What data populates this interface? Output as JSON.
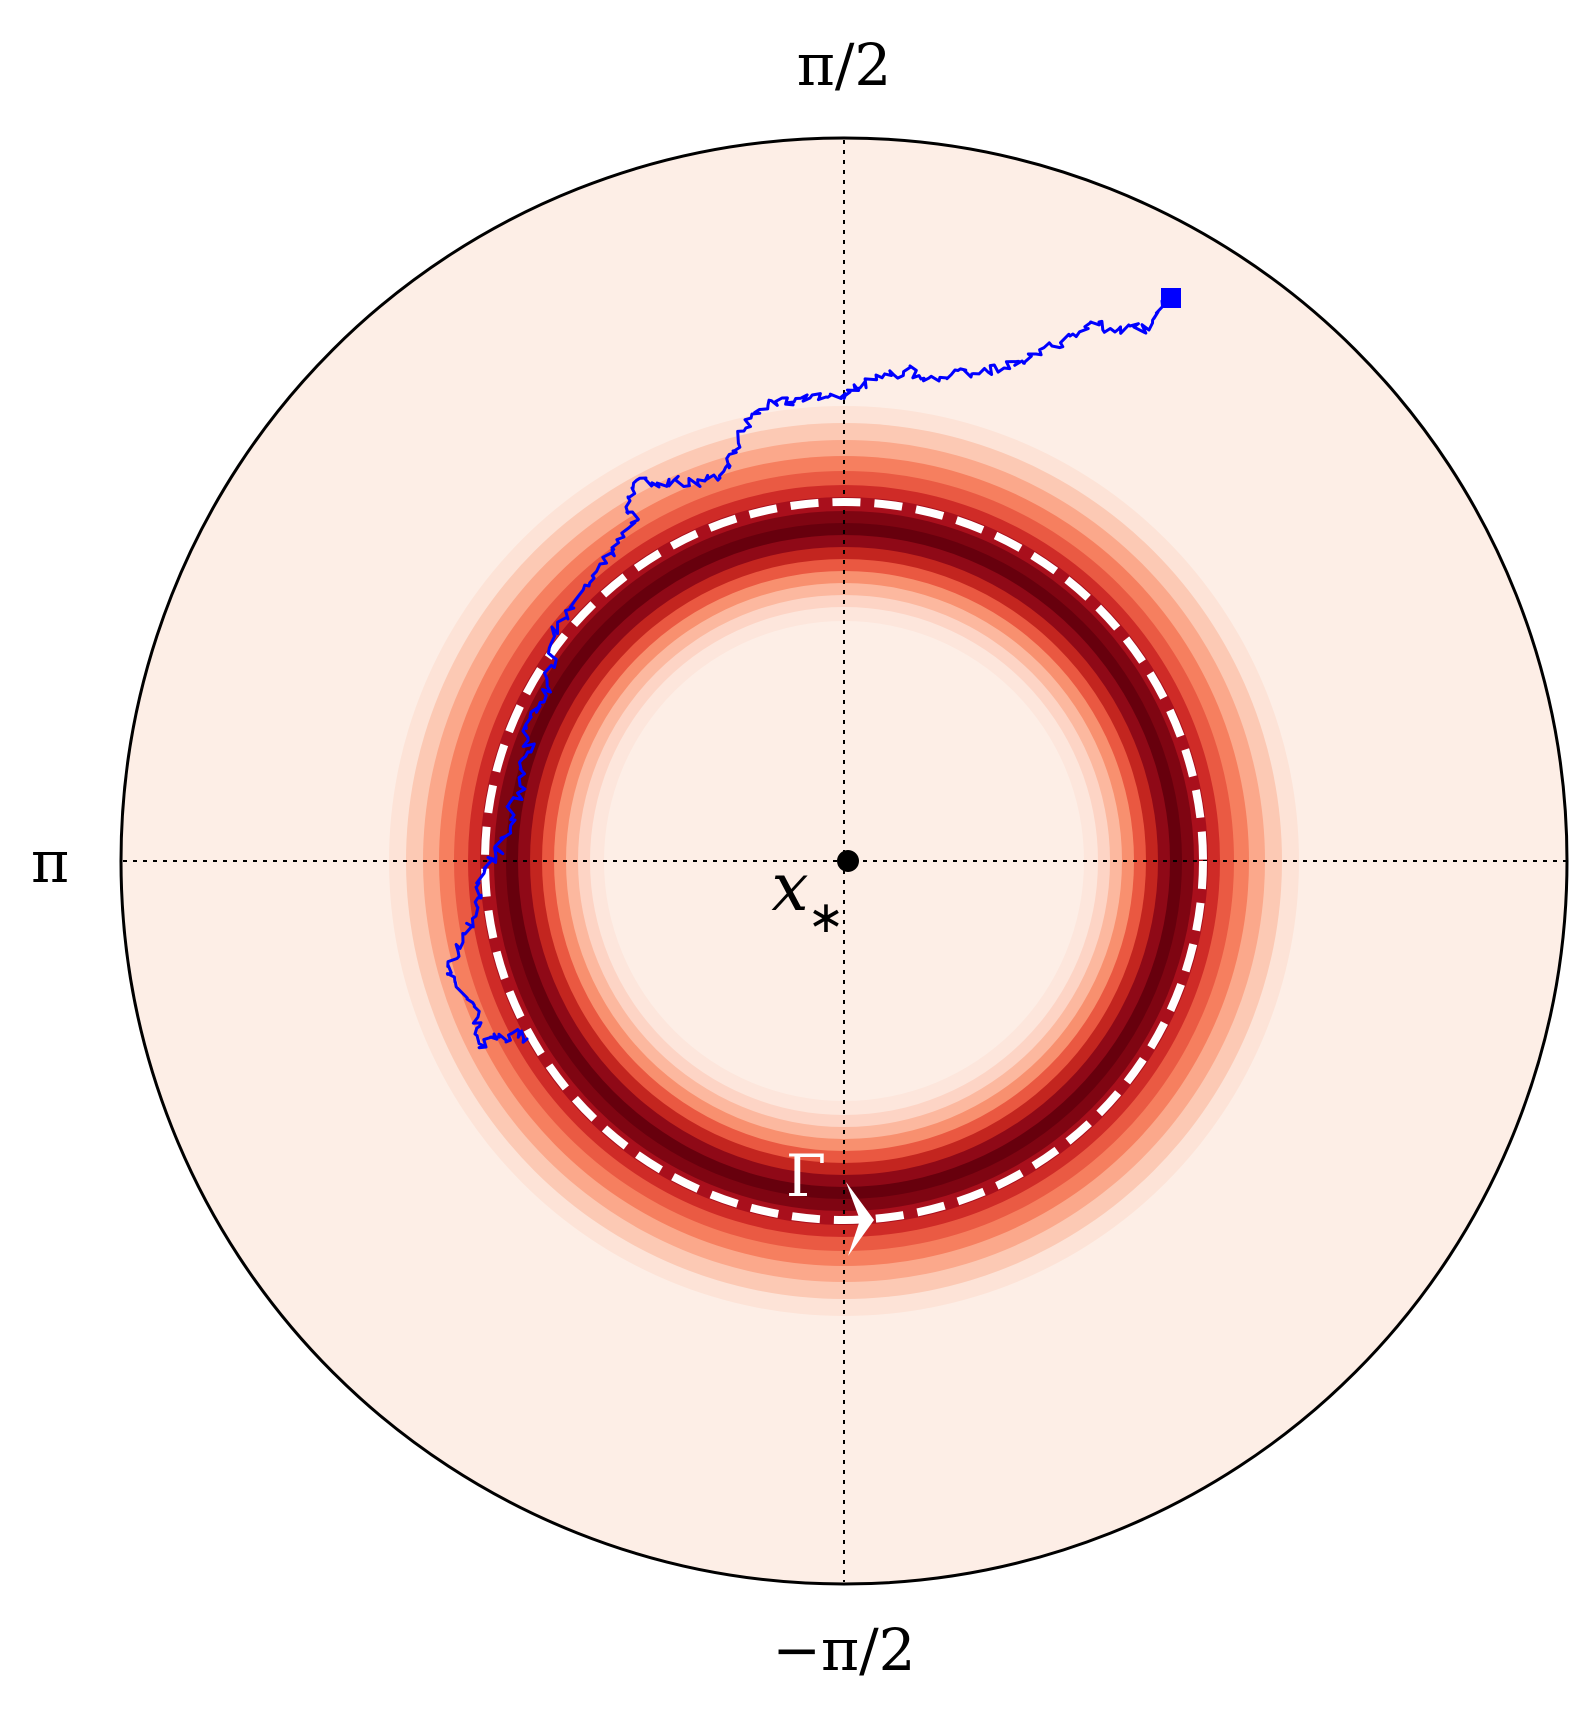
{
  "labels": {
    "top": "π/2",
    "left": "π",
    "bottom": "−π/2",
    "center": "x",
    "center_subscript": "∗",
    "cycle": "Γ"
  },
  "colors": {
    "background_disk": "#fdeee6",
    "disk_outline": "#000000",
    "guide_lines": "#000000",
    "density_peak": "#67000d",
    "density_low": "#fdeee6",
    "cycle_dash": "#ffffff",
    "trajectory": "#0000ff",
    "center_point": "#000000"
  },
  "diagram": {
    "density_levels": 12,
    "limit_cycle_style": "dashed",
    "trajectory_markers": [
      "start-square",
      "path"
    ],
    "center_marker": "dot",
    "direction_marker": "arrow"
  }
}
